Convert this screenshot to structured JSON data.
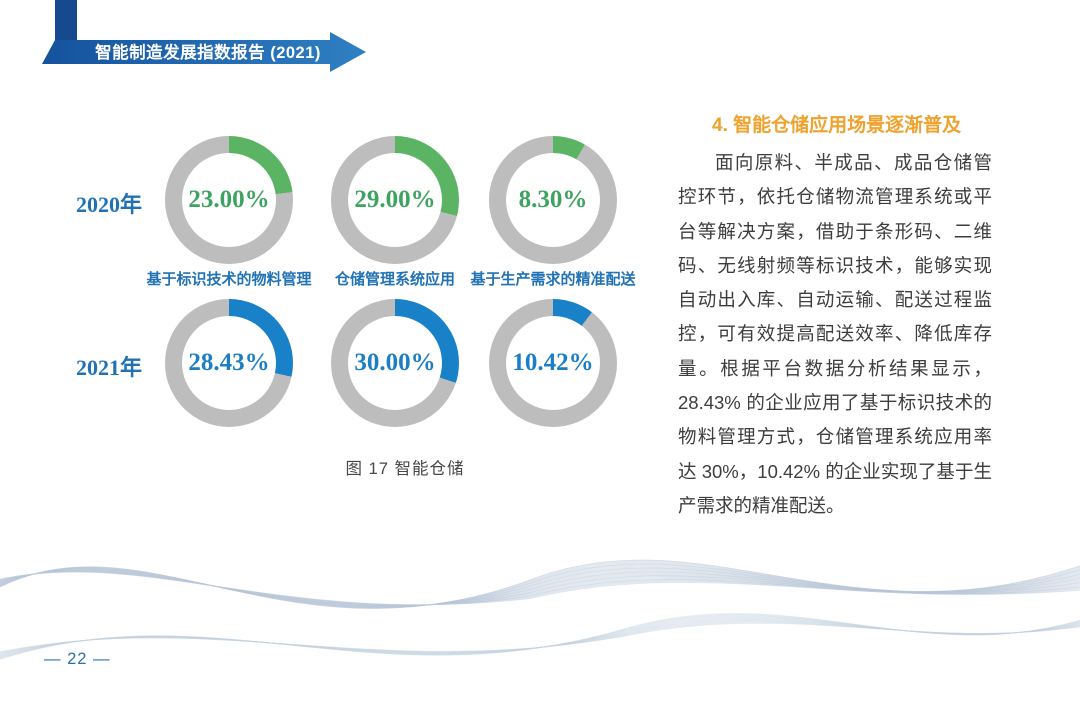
{
  "page": {
    "header_title": "智能制造发展指数报告 (2021)",
    "page_number": "— 22 —"
  },
  "colors": {
    "green": "#5ab464",
    "green_text": "#3ea361",
    "blue": "#1981c8",
    "blue_text": "#1c7ec4",
    "ring_gray": "#bdbdbd",
    "label_blue": "#2273b5",
    "heading_orange": "#efa22d",
    "banner_blue_dark": "#17498f",
    "banner_blue": "#1f63ad"
  },
  "chart_data": {
    "type": "pie",
    "subtype": "donut-grid",
    "title": "图 17 智能仓储",
    "legend_position": "left-row-labels",
    "categories": [
      "基于标识技术的物料管理",
      "仓储管理系统应用",
      "基于生产需求的精准配送"
    ],
    "series": [
      {
        "name": "2020年",
        "color": "#5ab464",
        "value_color": "#3ea361",
        "values": [
          23.0,
          29.0,
          8.3
        ],
        "labels": [
          "23.00%",
          "29.00%",
          "8.30%"
        ]
      },
      {
        "name": "2021年",
        "color": "#1981c8",
        "value_color": "#1c7ec4",
        "values": [
          28.43,
          30.0,
          10.42
        ],
        "labels": [
          "28.43%",
          "30.00%",
          "10.42%"
        ]
      }
    ]
  },
  "article": {
    "heading": "4. 智能仓储应用场景逐渐普及",
    "body": "面向原料、半成品、成品仓储管控环节，依托仓储物流管理系统或平台等解决方案，借助于条形码、二维码、无线射频等标识技术，能够实现自动出入库、自动运输、配送过程监控，可有效提高配送效率、降低库存量。根据平台数据分析结果显示，28.43% 的企业应用了基于标识技术的物料管理方式，仓储管理系统应用率达 30%，10.42% 的企业实现了基于生产需求的精准配送。"
  }
}
